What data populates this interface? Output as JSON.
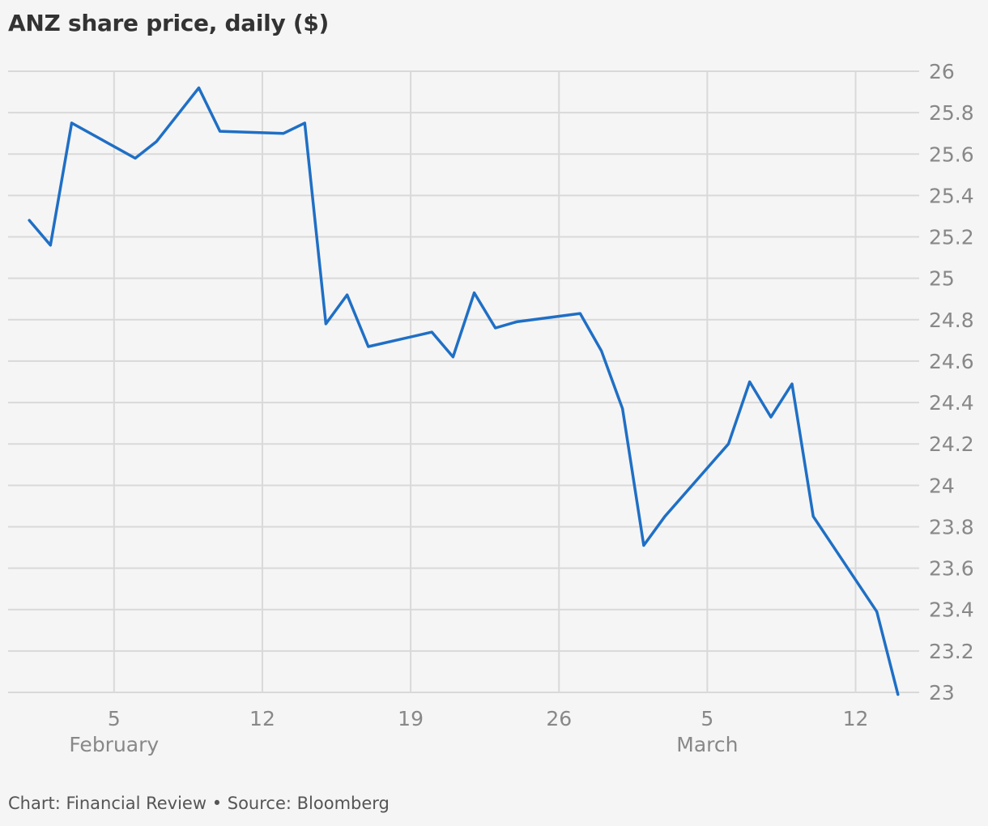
{
  "chart_data": {
    "type": "line",
    "title": "ANZ share price, daily ($)",
    "xlabel": "",
    "ylabel": "",
    "ylim": [
      23,
      26
    ],
    "y_ticks": [
      26,
      25.8,
      25.6,
      25.4,
      25.2,
      25,
      24.8,
      24.6,
      24.4,
      24.2,
      24,
      23.8,
      23.6,
      23.4,
      23.2,
      23
    ],
    "y_tick_labels": [
      "26",
      "25.8",
      "25.6",
      "25.4",
      "25.2",
      "25",
      "24.8",
      "24.6",
      "24.4",
      "24.2",
      "24",
      "23.8",
      "23.6",
      "23.4",
      "23.2",
      "23"
    ],
    "xlim": [
      "2018-01-31",
      "2018-03-15"
    ],
    "x_ticks": [
      {
        "date": "2018-02-05",
        "label": "5",
        "month_label": "February"
      },
      {
        "date": "2018-02-12",
        "label": "12",
        "month_label": ""
      },
      {
        "date": "2018-02-19",
        "label": "19",
        "month_label": ""
      },
      {
        "date": "2018-02-26",
        "label": "26",
        "month_label": ""
      },
      {
        "date": "2018-03-05",
        "label": "5",
        "month_label": "March"
      },
      {
        "date": "2018-03-12",
        "label": "12",
        "month_label": ""
      }
    ],
    "grid": true,
    "series": [
      {
        "color": "#1f6fc5",
        "points": [
          {
            "x": "2018-02-01",
            "y": 25.28
          },
          {
            "x": "2018-02-02",
            "y": 25.16
          },
          {
            "x": "2018-02-03",
            "y": 25.75
          },
          {
            "x": "2018-02-06",
            "y": 25.58
          },
          {
            "x": "2018-02-07",
            "y": 25.66
          },
          {
            "x": "2018-02-09",
            "y": 25.92
          },
          {
            "x": "2018-02-10",
            "y": 25.71
          },
          {
            "x": "2018-02-13",
            "y": 25.7
          },
          {
            "x": "2018-02-14",
            "y": 25.75
          },
          {
            "x": "2018-02-15",
            "y": 24.78
          },
          {
            "x": "2018-02-16",
            "y": 24.92
          },
          {
            "x": "2018-02-17",
            "y": 24.67
          },
          {
            "x": "2018-02-20",
            "y": 24.74
          },
          {
            "x": "2018-02-21",
            "y": 24.62
          },
          {
            "x": "2018-02-22",
            "y": 24.93
          },
          {
            "x": "2018-02-23",
            "y": 24.76
          },
          {
            "x": "2018-02-24",
            "y": 24.79
          },
          {
            "x": "2018-02-27",
            "y": 24.83
          },
          {
            "x": "2018-02-28",
            "y": 24.65
          },
          {
            "x": "2018-03-01",
            "y": 24.37
          },
          {
            "x": "2018-03-02",
            "y": 23.71
          },
          {
            "x": "2018-03-03",
            "y": 23.85
          },
          {
            "x": "2018-03-06",
            "y": 24.2
          },
          {
            "x": "2018-03-07",
            "y": 24.5
          },
          {
            "x": "2018-03-08",
            "y": 24.33
          },
          {
            "x": "2018-03-09",
            "y": 24.49
          },
          {
            "x": "2018-03-10",
            "y": 23.85
          },
          {
            "x": "2018-03-13",
            "y": 23.39
          },
          {
            "x": "2018-03-14",
            "y": 22.99
          }
        ]
      }
    ]
  },
  "footer": "Chart: Financial Review • Source: Bloomberg"
}
